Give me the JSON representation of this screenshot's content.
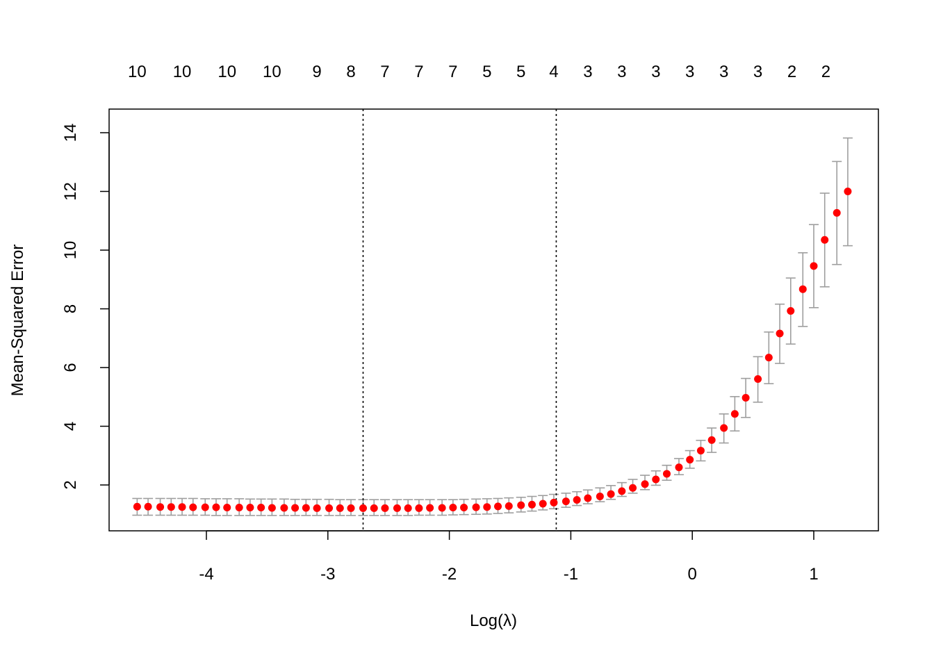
{
  "chart_data": {
    "type": "scatter",
    "xlabel": "Log(λ)",
    "ylabel": "Mean-Squared Error",
    "xlim": [
      -4.6,
      1.3
    ],
    "ylim": [
      0.8,
      14.8
    ],
    "x_ticks": [
      -4,
      -3,
      -2,
      -1,
      0,
      1
    ],
    "y_ticks": [
      2,
      4,
      6,
      8,
      10,
      12,
      14
    ],
    "grid": false,
    "vlines": [
      -2.71,
      -1.12
    ],
    "top_axis": {
      "x": [
        -4.57,
        -4.2,
        -3.83,
        -3.46,
        -3.09,
        -2.81,
        -2.53,
        -2.25,
        -1.97,
        -1.69,
        -1.41,
        -1.14,
        -0.86,
        -0.58,
        -0.3,
        -0.02,
        0.26,
        0.54,
        0.82,
        1.1
      ],
      "labels": [
        "10",
        "10",
        "10",
        "10",
        "9",
        "8",
        "7",
        "7",
        "7",
        "5",
        "5",
        "4",
        "3",
        "3",
        "3",
        "3",
        "3",
        "3",
        "2",
        "2"
      ]
    },
    "x": [
      -4.57,
      -4.48,
      -4.38,
      -4.29,
      -4.2,
      -4.11,
      -4.01,
      -3.92,
      -3.83,
      -3.73,
      -3.64,
      -3.55,
      -3.46,
      -3.36,
      -3.27,
      -3.18,
      -3.09,
      -2.99,
      -2.9,
      -2.81,
      -2.71,
      -2.62,
      -2.53,
      -2.43,
      -2.34,
      -2.25,
      -2.16,
      -2.06,
      -1.97,
      -1.88,
      -1.78,
      -1.69,
      -1.6,
      -1.51,
      -1.41,
      -1.32,
      -1.23,
      -1.14,
      -1.04,
      -0.95,
      -0.86,
      -0.76,
      -0.67,
      -0.58,
      -0.49,
      -0.39,
      -0.3,
      -0.21,
      -0.11,
      -0.02,
      0.07,
      0.16,
      0.26,
      0.35,
      0.44,
      0.54,
      0.63,
      0.72,
      0.81,
      0.91,
      1.0,
      1.09,
      1.19,
      1.28
    ],
    "y": [
      1.26,
      1.26,
      1.25,
      1.25,
      1.25,
      1.24,
      1.24,
      1.24,
      1.23,
      1.23,
      1.23,
      1.23,
      1.22,
      1.22,
      1.22,
      1.22,
      1.21,
      1.21,
      1.21,
      1.21,
      1.21,
      1.21,
      1.21,
      1.21,
      1.21,
      1.21,
      1.22,
      1.22,
      1.23,
      1.23,
      1.24,
      1.25,
      1.27,
      1.28,
      1.31,
      1.33,
      1.36,
      1.4,
      1.44,
      1.49,
      1.55,
      1.61,
      1.69,
      1.79,
      1.9,
      2.03,
      2.19,
      2.38,
      2.6,
      2.86,
      3.17,
      3.53,
      3.94,
      4.42,
      4.97,
      5.61,
      6.34,
      7.16,
      7.93,
      8.67,
      9.46,
      10.35,
      11.27,
      12.0
    ],
    "err_low": [
      0.97,
      0.97,
      0.97,
      0.97,
      0.97,
      0.97,
      0.97,
      0.96,
      0.96,
      0.96,
      0.96,
      0.96,
      0.96,
      0.96,
      0.96,
      0.96,
      0.96,
      0.96,
      0.96,
      0.96,
      0.96,
      0.96,
      0.96,
      0.96,
      0.96,
      0.97,
      0.97,
      0.97,
      0.98,
      0.99,
      1.0,
      1.01,
      1.03,
      1.05,
      1.08,
      1.11,
      1.15,
      1.19,
      1.24,
      1.3,
      1.36,
      1.43,
      1.51,
      1.61,
      1.72,
      1.84,
      1.99,
      2.16,
      2.35,
      2.57,
      2.82,
      3.11,
      3.43,
      3.84,
      4.3,
      4.82,
      5.45,
      6.14,
      6.8,
      7.4,
      8.04,
      8.75,
      9.51,
      10.15
    ],
    "err_high": [
      1.54,
      1.54,
      1.54,
      1.54,
      1.54,
      1.54,
      1.53,
      1.53,
      1.53,
      1.53,
      1.52,
      1.52,
      1.52,
      1.52,
      1.51,
      1.51,
      1.51,
      1.51,
      1.5,
      1.5,
      1.5,
      1.5,
      1.5,
      1.5,
      1.5,
      1.5,
      1.5,
      1.5,
      1.5,
      1.51,
      1.52,
      1.53,
      1.54,
      1.56,
      1.58,
      1.61,
      1.64,
      1.68,
      1.72,
      1.77,
      1.83,
      1.9,
      1.98,
      2.08,
      2.19,
      2.33,
      2.48,
      2.67,
      2.9,
      3.17,
      3.52,
      3.94,
      4.42,
      5.01,
      5.63,
      6.37,
      7.21,
      8.16,
      9.05,
      9.91,
      10.87,
      11.94,
      13.02,
      13.82
    ],
    "point_color": "#ff0000",
    "errorbar_color": "#9e9e9e",
    "vline_color": "#000000"
  }
}
